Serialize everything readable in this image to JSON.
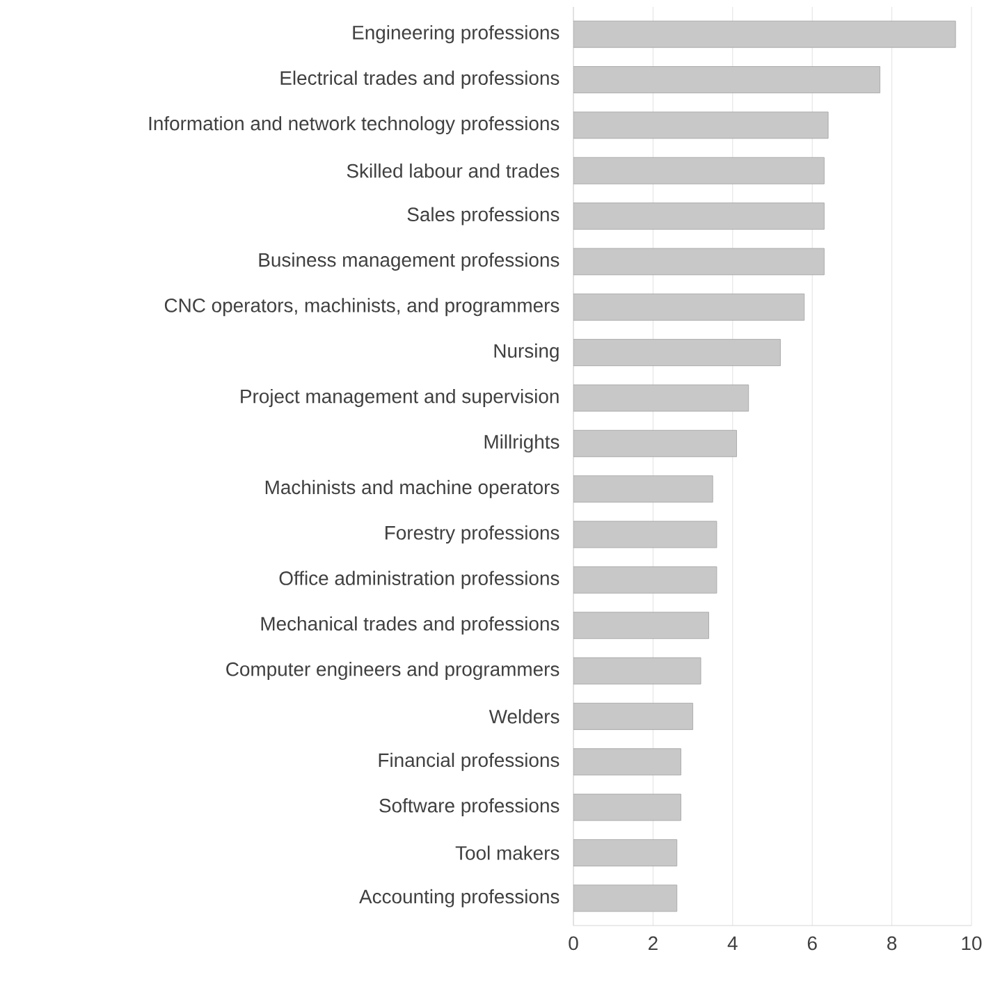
{
  "chart_data": {
    "type": "bar",
    "orientation": "horizontal",
    "categories": [
      "Engineering professions",
      "Electrical trades and professions",
      "Information and network technology professions",
      "Skilled labour and trades",
      "Sales professions",
      "Business management professions",
      "CNC operators, machinists, and programmers",
      "Nursing",
      "Project management and supervision",
      "Millrights",
      "Machinists and machine operators",
      "Forestry professions",
      "Office administration professions",
      "Mechanical trades and professions",
      "Computer engineers and programmers",
      "Welders",
      "Financial professions",
      "Software professions",
      "Tool makers",
      "Accounting professions"
    ],
    "values": [
      9.6,
      7.7,
      6.4,
      6.3,
      6.3,
      6.3,
      5.8,
      5.2,
      4.4,
      4.1,
      3.5,
      3.6,
      3.6,
      3.4,
      3.2,
      3.0,
      2.7,
      2.7,
      2.6,
      2.6
    ],
    "color": "#c8c8c8",
    "xlim": [
      0,
      10
    ],
    "xticks": [
      0,
      2,
      4,
      6,
      8,
      10
    ],
    "grid": "x"
  }
}
